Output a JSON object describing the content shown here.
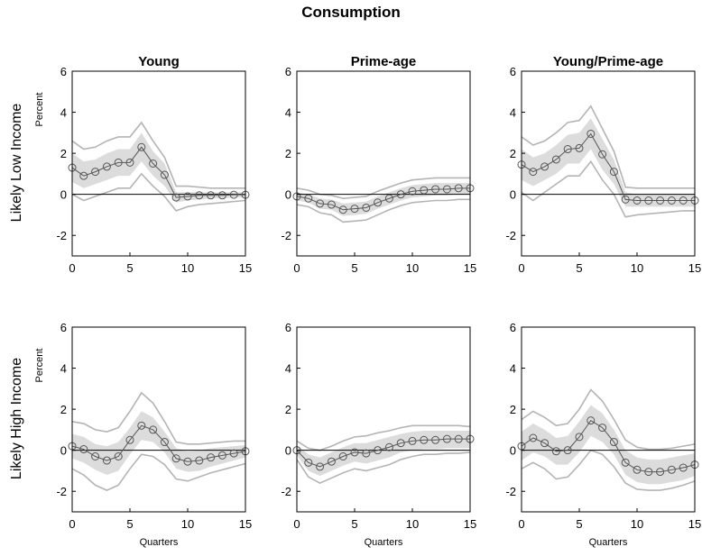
{
  "figure_title": "Consumption",
  "colors": {
    "band_inner": "#dcdcdc",
    "band_outer": "#b4b4b4",
    "line": "#555555",
    "zero": "#000000"
  },
  "chart_data": [
    {
      "type": "line",
      "title": "Young",
      "row_label": "Likely Low Income",
      "ylabel": "Percent",
      "xlabel": "",
      "xlim": [
        0,
        15
      ],
      "ylim": [
        -3,
        6
      ],
      "xticks": [
        0,
        5,
        10,
        15
      ],
      "yticks": [
        -2,
        0,
        2,
        4,
        6
      ],
      "x": [
        0,
        1,
        2,
        3,
        4,
        5,
        6,
        7,
        8,
        9,
        10,
        11,
        12,
        13,
        14,
        15
      ],
      "series": [
        {
          "values": [
            1.3,
            0.9,
            1.1,
            1.35,
            1.55,
            1.55,
            2.3,
            1.5,
            0.95,
            -0.15,
            -0.1,
            -0.05,
            -0.05,
            -0.05,
            -0.02,
            -0.02
          ]
        },
        {
          "values": [
            2.0,
            1.6,
            1.7,
            2.0,
            2.2,
            2.2,
            3.0,
            2.1,
            1.5,
            0.1,
            0.1,
            0.1,
            0.1,
            0.1,
            0.1,
            0.1
          ]
        },
        {
          "values": [
            0.6,
            0.3,
            0.5,
            0.7,
            0.9,
            0.9,
            1.6,
            0.9,
            0.4,
            -0.4,
            -0.3,
            -0.25,
            -0.2,
            -0.2,
            -0.15,
            -0.15
          ]
        },
        {
          "values": [
            2.6,
            2.2,
            2.3,
            2.6,
            2.8,
            2.8,
            3.5,
            2.6,
            1.8,
            0.4,
            0.4,
            0.35,
            0.3,
            0.3,
            0.3,
            0.3
          ]
        },
        {
          "values": [
            0.0,
            -0.3,
            -0.1,
            0.1,
            0.3,
            0.3,
            1.0,
            0.4,
            -0.1,
            -0.8,
            -0.6,
            -0.5,
            -0.45,
            -0.4,
            -0.35,
            -0.3
          ]
        }
      ]
    },
    {
      "type": "line",
      "title": "Prime-age",
      "row_label": "",
      "ylabel": "",
      "xlabel": "",
      "xlim": [
        0,
        15
      ],
      "ylim": [
        -3,
        6
      ],
      "xticks": [
        0,
        5,
        10,
        15
      ],
      "yticks": [
        -2,
        0,
        2,
        4,
        6
      ],
      "x": [
        0,
        1,
        2,
        3,
        4,
        5,
        6,
        7,
        8,
        9,
        10,
        11,
        12,
        13,
        14,
        15
      ],
      "series": [
        {
          "values": [
            -0.1,
            -0.2,
            -0.45,
            -0.5,
            -0.75,
            -0.7,
            -0.65,
            -0.4,
            -0.2,
            0.0,
            0.15,
            0.2,
            0.25,
            0.25,
            0.3,
            0.3
          ]
        },
        {
          "values": [
            0.1,
            0.0,
            -0.2,
            -0.25,
            -0.45,
            -0.4,
            -0.35,
            -0.1,
            0.1,
            0.3,
            0.45,
            0.5,
            0.55,
            0.55,
            0.55,
            0.55
          ]
        },
        {
          "values": [
            -0.3,
            -0.4,
            -0.7,
            -0.75,
            -1.05,
            -1.0,
            -0.95,
            -0.7,
            -0.5,
            -0.3,
            -0.15,
            -0.1,
            -0.05,
            -0.05,
            0.0,
            0.0
          ]
        },
        {
          "values": [
            0.3,
            0.2,
            0.0,
            -0.05,
            -0.2,
            -0.15,
            -0.1,
            0.15,
            0.35,
            0.55,
            0.7,
            0.75,
            0.8,
            0.8,
            0.8,
            0.8
          ]
        },
        {
          "values": [
            -0.5,
            -0.6,
            -0.9,
            -1.0,
            -1.35,
            -1.3,
            -1.25,
            -1.0,
            -0.75,
            -0.55,
            -0.4,
            -0.35,
            -0.3,
            -0.3,
            -0.25,
            -0.25
          ]
        }
      ]
    },
    {
      "type": "line",
      "title": "Young/Prime-age",
      "row_label": "",
      "ylabel": "",
      "xlabel": "",
      "xlim": [
        0,
        15
      ],
      "ylim": [
        -3,
        6
      ],
      "xticks": [
        0,
        5,
        10,
        15
      ],
      "yticks": [
        -2,
        0,
        2,
        4,
        6
      ],
      "x": [
        0,
        1,
        2,
        3,
        4,
        5,
        6,
        7,
        8,
        9,
        10,
        11,
        12,
        13,
        14,
        15
      ],
      "series": [
        {
          "values": [
            1.45,
            1.1,
            1.35,
            1.7,
            2.2,
            2.25,
            2.95,
            1.95,
            1.1,
            -0.25,
            -0.3,
            -0.3,
            -0.3,
            -0.3,
            -0.3,
            -0.3
          ]
        },
        {
          "values": [
            2.2,
            1.8,
            2.0,
            2.4,
            2.9,
            3.0,
            3.7,
            2.7,
            1.7,
            0.1,
            0.0,
            0.0,
            0.0,
            0.0,
            0.0,
            0.0
          ]
        },
        {
          "values": [
            0.7,
            0.4,
            0.7,
            1.0,
            1.5,
            1.5,
            2.2,
            1.2,
            0.5,
            -0.6,
            -0.6,
            -0.6,
            -0.6,
            -0.6,
            -0.6,
            -0.6
          ]
        },
        {
          "values": [
            2.8,
            2.4,
            2.6,
            3.0,
            3.5,
            3.6,
            4.3,
            3.2,
            2.1,
            0.35,
            0.3,
            0.3,
            0.3,
            0.3,
            0.3,
            0.3
          ]
        },
        {
          "values": [
            0.1,
            -0.3,
            0.1,
            0.5,
            0.9,
            0.9,
            1.6,
            0.7,
            0.0,
            -1.1,
            -1.0,
            -0.95,
            -0.9,
            -0.85,
            -0.8,
            -0.8
          ]
        }
      ]
    },
    {
      "type": "line",
      "title": "",
      "row_label": "Likely High Income",
      "ylabel": "Percent",
      "xlabel": "Quarters",
      "xlim": [
        0,
        15
      ],
      "ylim": [
        -3,
        6
      ],
      "xticks": [
        0,
        5,
        10,
        15
      ],
      "yticks": [
        -2,
        0,
        2,
        4,
        6
      ],
      "x": [
        0,
        1,
        2,
        3,
        4,
        5,
        6,
        7,
        8,
        9,
        10,
        11,
        12,
        13,
        14,
        15
      ],
      "series": [
        {
          "values": [
            0.2,
            0.05,
            -0.3,
            -0.5,
            -0.3,
            0.5,
            1.2,
            1.0,
            0.4,
            -0.4,
            -0.55,
            -0.5,
            -0.35,
            -0.25,
            -0.15,
            -0.05
          ]
        },
        {
          "values": [
            0.8,
            0.65,
            0.3,
            0.2,
            0.4,
            1.1,
            1.9,
            1.6,
            0.9,
            0.1,
            -0.05,
            0.0,
            0.1,
            0.15,
            0.2,
            0.25
          ]
        },
        {
          "values": [
            -0.4,
            -0.6,
            -0.95,
            -1.2,
            -1.0,
            -0.2,
            0.5,
            0.4,
            -0.1,
            -0.9,
            -1.05,
            -1.0,
            -0.8,
            -0.65,
            -0.5,
            -0.35
          ]
        },
        {
          "values": [
            1.4,
            1.3,
            1.0,
            0.9,
            1.1,
            1.9,
            2.8,
            2.3,
            1.4,
            0.4,
            0.3,
            0.3,
            0.35,
            0.4,
            0.45,
            0.45
          ]
        },
        {
          "values": [
            -0.9,
            -1.2,
            -1.7,
            -1.95,
            -1.7,
            -0.9,
            -0.2,
            -0.3,
            -0.7,
            -1.4,
            -1.5,
            -1.3,
            -1.1,
            -0.95,
            -0.8,
            -0.65
          ]
        }
      ]
    },
    {
      "type": "line",
      "title": "",
      "row_label": "",
      "ylabel": "",
      "xlabel": "Quarters",
      "xlim": [
        0,
        15
      ],
      "ylim": [
        -3,
        6
      ],
      "xticks": [
        0,
        5,
        10,
        15
      ],
      "yticks": [
        -2,
        0,
        2,
        4,
        6
      ],
      "x": [
        0,
        1,
        2,
        3,
        4,
        5,
        6,
        7,
        8,
        9,
        10,
        11,
        12,
        13,
        14,
        15
      ],
      "series": [
        {
          "values": [
            0.0,
            -0.6,
            -0.8,
            -0.55,
            -0.3,
            -0.1,
            -0.15,
            0.0,
            0.15,
            0.35,
            0.45,
            0.5,
            0.5,
            0.55,
            0.55,
            0.55
          ]
        },
        {
          "values": [
            0.25,
            -0.2,
            -0.35,
            -0.1,
            0.15,
            0.35,
            0.35,
            0.5,
            0.65,
            0.8,
            0.9,
            0.95,
            0.95,
            0.95,
            0.95,
            0.95
          ]
        },
        {
          "values": [
            -0.25,
            -1.0,
            -1.25,
            -1.0,
            -0.75,
            -0.55,
            -0.65,
            -0.5,
            -0.35,
            -0.1,
            0.0,
            0.05,
            0.05,
            0.1,
            0.1,
            0.1
          ]
        },
        {
          "values": [
            0.45,
            0.1,
            0.0,
            0.2,
            0.45,
            0.65,
            0.7,
            0.85,
            0.95,
            1.1,
            1.2,
            1.2,
            1.2,
            1.2,
            1.2,
            1.15
          ]
        },
        {
          "values": [
            -0.45,
            -1.3,
            -1.6,
            -1.35,
            -1.1,
            -0.9,
            -1.0,
            -0.85,
            -0.7,
            -0.45,
            -0.3,
            -0.2,
            -0.2,
            -0.15,
            -0.15,
            -0.1
          ]
        }
      ]
    },
    {
      "type": "line",
      "title": "",
      "row_label": "",
      "ylabel": "",
      "xlabel": "Quarters",
      "xlim": [
        0,
        15
      ],
      "ylim": [
        -3,
        6
      ],
      "xticks": [
        0,
        5,
        10,
        15
      ],
      "yticks": [
        -2,
        0,
        2,
        4,
        6
      ],
      "x": [
        0,
        1,
        2,
        3,
        4,
        5,
        6,
        7,
        8,
        9,
        10,
        11,
        12,
        13,
        14,
        15
      ],
      "series": [
        {
          "values": [
            0.2,
            0.6,
            0.35,
            -0.05,
            0.0,
            0.65,
            1.45,
            1.1,
            0.4,
            -0.6,
            -0.95,
            -1.05,
            -1.05,
            -0.95,
            -0.85,
            -0.7
          ]
        },
        {
          "values": [
            0.9,
            1.3,
            1.0,
            0.6,
            0.7,
            1.4,
            2.2,
            1.8,
            1.0,
            0.0,
            -0.35,
            -0.45,
            -0.45,
            -0.35,
            -0.25,
            -0.15
          ]
        },
        {
          "values": [
            -0.5,
            -0.1,
            -0.3,
            -0.7,
            -0.7,
            -0.1,
            0.7,
            0.4,
            -0.2,
            -1.2,
            -1.55,
            -1.65,
            -1.65,
            -1.55,
            -1.45,
            -1.25
          ]
        },
        {
          "values": [
            1.5,
            1.9,
            1.6,
            1.2,
            1.3,
            2.0,
            2.95,
            2.4,
            1.5,
            0.5,
            0.15,
            0.05,
            0.05,
            0.1,
            0.2,
            0.3
          ]
        },
        {
          "values": [
            -0.9,
            -0.6,
            -0.9,
            -1.4,
            -1.3,
            -0.7,
            0.0,
            -0.2,
            -0.8,
            -1.6,
            -1.9,
            -1.95,
            -1.95,
            -1.85,
            -1.7,
            -1.5
          ]
        }
      ]
    }
  ]
}
